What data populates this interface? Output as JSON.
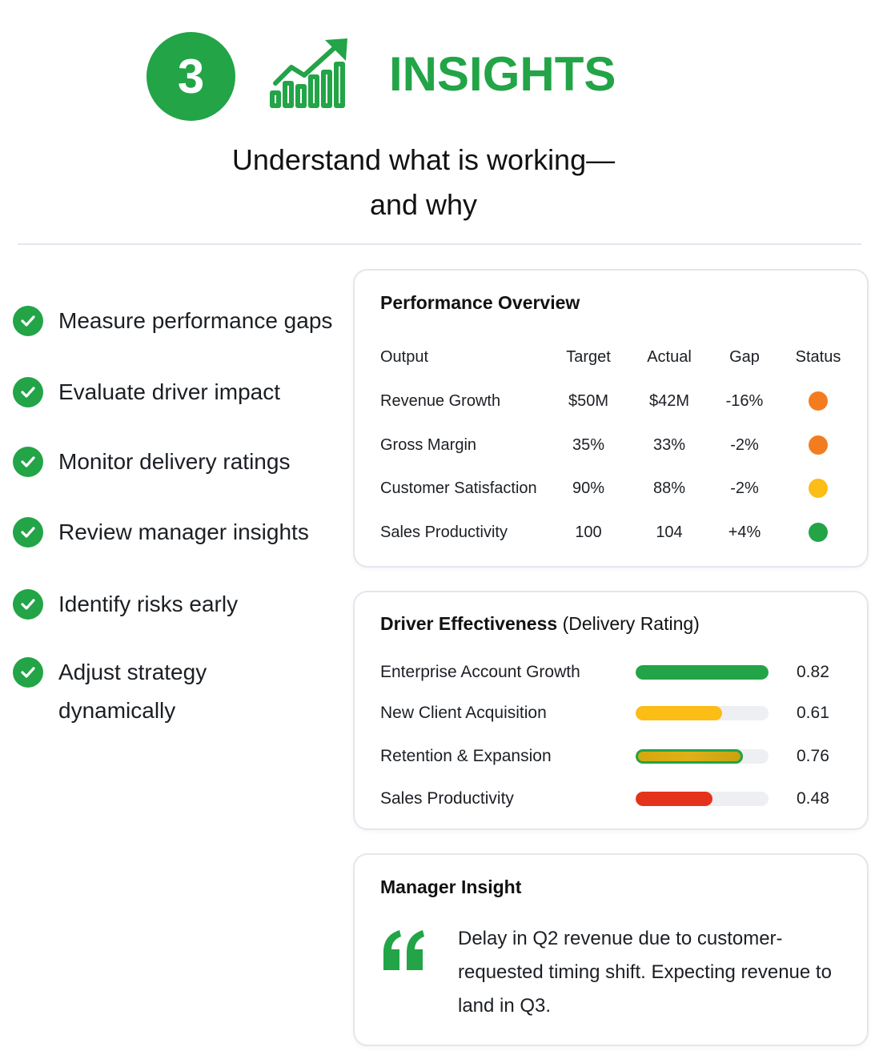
{
  "header": {
    "step_number": "3",
    "title": "INSIGHTS",
    "subtitle_line1": "Understand what is working—",
    "subtitle_line2": "and why",
    "icon": "growth-chart-icon"
  },
  "colors": {
    "accent": "#22a447",
    "orange": "#f47c20",
    "yellow": "#fbbd16",
    "red": "#e4331a",
    "green": "#22a447"
  },
  "checklist": {
    "items": [
      "Measure performance gaps",
      "Evaluate driver impact",
      "Monitor delivery ratings",
      "Review manager insights",
      "Identify risks early",
      "Adjust strategy dynamically"
    ]
  },
  "performance_overview": {
    "title": "Performance Overview",
    "columns": [
      "Output",
      "Target",
      "Actual",
      "Gap",
      "Status"
    ],
    "rows": [
      {
        "output": "Revenue Growth",
        "target": "$50M",
        "actual": "$42M",
        "gap": "-16%",
        "status": "orange"
      },
      {
        "output": "Gross Margin",
        "target": "35%",
        "actual": "33%",
        "gap": "-2%",
        "status": "orange"
      },
      {
        "output": "Customer Satisfaction",
        "target": "90%",
        "actual": "88%",
        "gap": "-2%",
        "status": "yellow"
      },
      {
        "output": "Sales Productivity",
        "target": "100",
        "actual": "104",
        "gap": "+4%",
        "status": "green"
      }
    ]
  },
  "driver_effectiveness": {
    "title_bold": "Driver Effectiveness",
    "title_light": "(Delivery Rating)",
    "drivers": [
      {
        "label": "Enterprise Account Growth",
        "value": "0.82",
        "fill": 1.0,
        "color": "green"
      },
      {
        "label": "New Client Acquisition",
        "value": "0.61",
        "fill": 0.65,
        "color": "yellow"
      },
      {
        "label": "Retention & Expansion",
        "value": "0.76",
        "fill": 0.81,
        "color": "green-yellow"
      },
      {
        "label": "Sales Productivity",
        "value": "0.48",
        "fill": 0.58,
        "color": "red"
      }
    ]
  },
  "manager_insight": {
    "title": "Manager Insight",
    "quote_icon": "quote-icon",
    "text": "Delay in Q2 revenue due to customer-requested timing shift. Expecting revenue to land in Q3."
  }
}
